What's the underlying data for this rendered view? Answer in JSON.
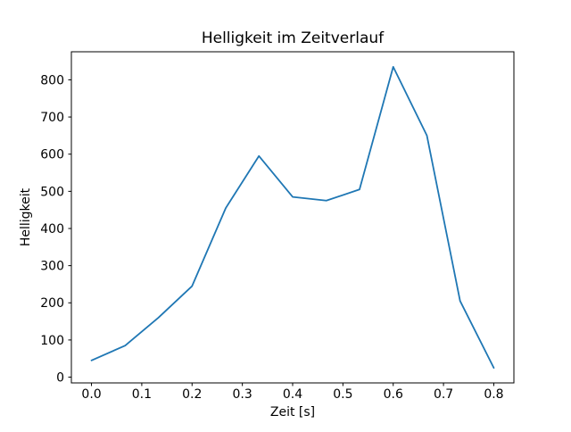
{
  "chart_data": {
    "type": "line",
    "title": "Helligkeit im Zeitverlauf",
    "xlabel": "Zeit [s]",
    "ylabel": "Helligkeit",
    "x": [
      0.0,
      0.067,
      0.133,
      0.2,
      0.267,
      0.333,
      0.4,
      0.467,
      0.533,
      0.6,
      0.667,
      0.733,
      0.8
    ],
    "y": [
      45,
      85,
      160,
      245,
      455,
      595,
      485,
      475,
      505,
      835,
      650,
      205,
      25
    ],
    "xlim": [
      -0.04,
      0.84
    ],
    "ylim": [
      -15.5,
      875.5
    ],
    "xticks": [
      0.0,
      0.1,
      0.2,
      0.3,
      0.4,
      0.5,
      0.6,
      0.7,
      0.8
    ],
    "yticks": [
      0,
      100,
      200,
      300,
      400,
      500,
      600,
      700,
      800
    ],
    "line_color": "#1f77b4",
    "line_width": 1.8,
    "grid": false,
    "legend": null,
    "background_color": "#ffffff",
    "spine_color": "#000000"
  }
}
